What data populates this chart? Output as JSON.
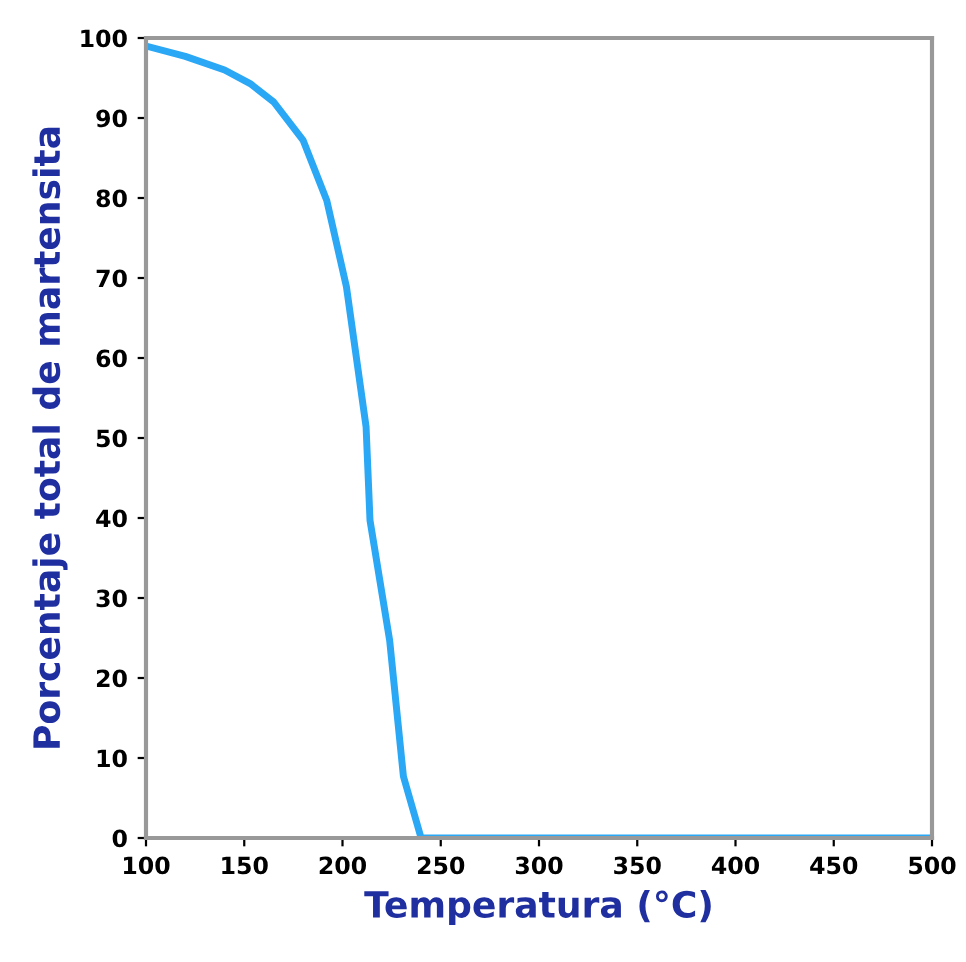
{
  "chart_data": {
    "type": "line",
    "xlabel": "Temperatura (°C)",
    "ylabel": "Porcentaje total de martensita",
    "x": [
      100,
      120,
      140,
      153,
      165,
      180,
      192,
      202,
      212,
      214,
      224,
      231,
      240,
      260,
      300,
      400,
      500
    ],
    "series": [
      {
        "color": "#2aa7f5",
        "values": [
          99,
          97.7,
          96,
          94.3,
          92,
          87.2,
          79.7,
          68.9,
          51.4,
          39.7,
          24.7,
          7.7,
          0,
          0,
          0,
          0,
          0
        ]
      }
    ],
    "xlim": [
      100,
      500
    ],
    "ylim": [
      0,
      100
    ],
    "xticks": [
      100,
      150,
      200,
      250,
      300,
      350,
      400,
      450,
      500
    ],
    "yticks": [
      0,
      10,
      20,
      30,
      40,
      50,
      60,
      70,
      80,
      90,
      100
    ],
    "grid": false,
    "legend": false,
    "marker": "none",
    "line_style": "solid"
  }
}
